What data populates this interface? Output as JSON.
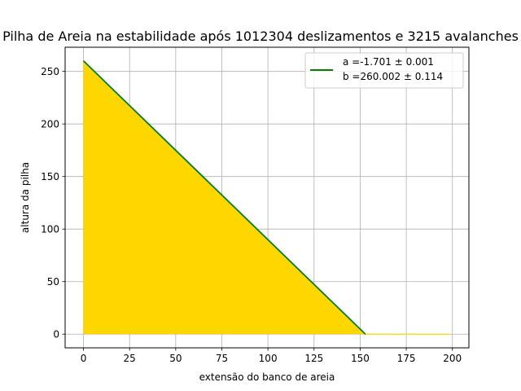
{
  "chart_data": {
    "type": "area",
    "title": "Pilha de Areia na estabilidade após 1012304 deslizamentos e 3215 avalanches",
    "xlabel": "extensão do banco de areia",
    "ylabel": "altura da pilha",
    "xlim": [
      -9.95,
      208.95
    ],
    "ylim": [
      -13.0,
      273.0
    ],
    "xticks": [
      0,
      25,
      50,
      75,
      100,
      125,
      150,
      175,
      200
    ],
    "yticks": [
      0,
      50,
      100,
      150,
      200,
      250
    ],
    "grid": true,
    "legend_position": "top-right",
    "pile_profile": {
      "color": "#ffd700",
      "x": [
        0,
        152,
        199
      ],
      "y": [
        260,
        0,
        0
      ]
    },
    "fit_line": {
      "color": "#008000",
      "x": [
        0,
        152.85
      ],
      "y": [
        260.002,
        0
      ]
    },
    "legend": {
      "line1": "a =-1.701 ± 0.001",
      "line2": "b =260.002 ± 0.114"
    }
  }
}
